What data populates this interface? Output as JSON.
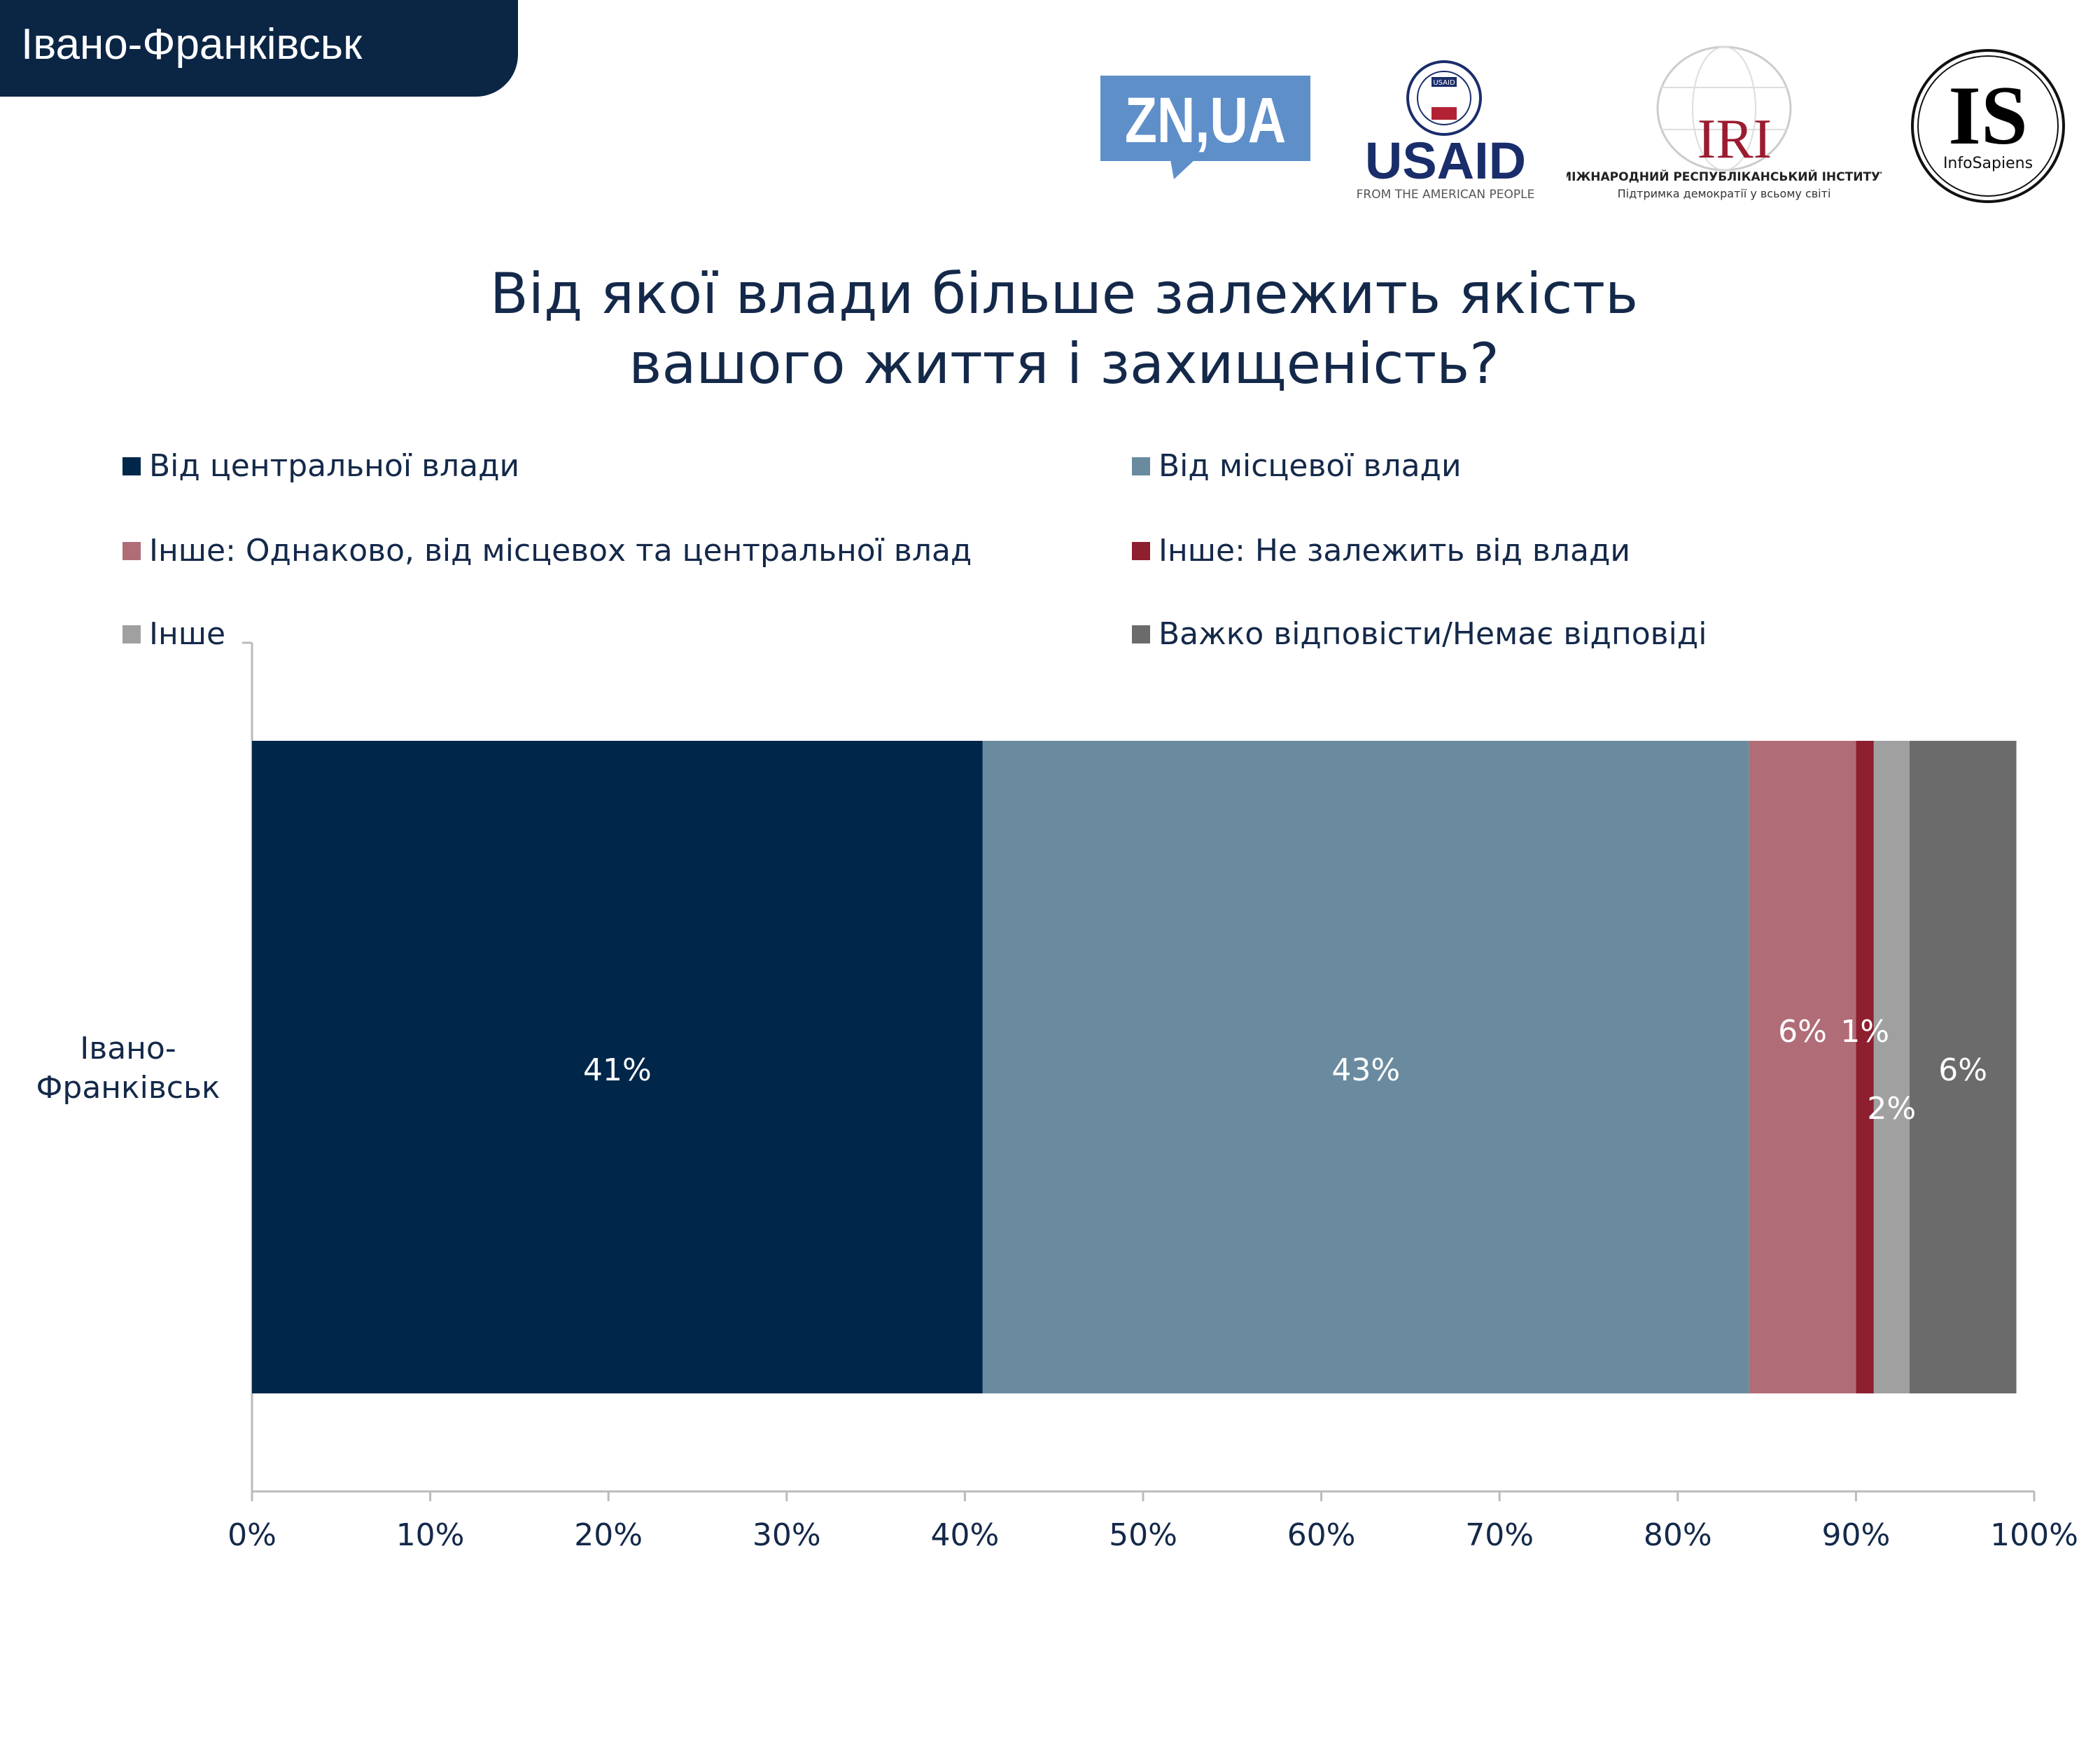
{
  "header": {
    "region_title": "Івано-Франківськ"
  },
  "logos": {
    "znua": "ZN,UA",
    "usaid": {
      "name": "USAID",
      "tagline": "FROM THE AMERICAN PEOPLE",
      "seal_text": "USAID"
    },
    "iri": {
      "name": "IRI",
      "line1": "МІЖНАРОДНИЙ РЕСПУБЛІКАНСЬКИЙ ІНСТИТУТ",
      "line2": "Підтримка демократії у всьому світі"
    },
    "infosapiens": {
      "name": "IS",
      "sub": "InfoSapiens"
    }
  },
  "chart_data": {
    "type": "bar",
    "orientation": "horizontal",
    "stacked": true,
    "title_lines": [
      "Від якої влади більше залежить якість",
      "вашого життя і захищеність?"
    ],
    "categories": [
      "Івано-\nФранківськ"
    ],
    "category_lines": [
      "Івано-",
      "Франківськ"
    ],
    "series": [
      {
        "name": "Від центральної влади",
        "values": [
          41
        ],
        "label": "41%",
        "color": "#00264a"
      },
      {
        "name": "Від місцевої влади",
        "values": [
          43
        ],
        "label": "43%",
        "color": "#6a8b9f"
      },
      {
        "name": "Інше: Однаково, від місцевох та центральної влад",
        "values": [
          6
        ],
        "label": "6%",
        "color": "#b06d77"
      },
      {
        "name": "Інше: Не залежить від влади",
        "values": [
          1
        ],
        "label": "1%",
        "color": "#8e1f2f"
      },
      {
        "name": "Інше",
        "values": [
          2
        ],
        "label": "2%",
        "color": "#a0a0a0"
      },
      {
        "name": "Важко відповісти/Немає відповіді",
        "values": [
          6
        ],
        "label": "6%",
        "color": "#6b6b6b"
      }
    ],
    "xlim": [
      0,
      100
    ],
    "xticks": [
      "0%",
      "10%",
      "20%",
      "30%",
      "40%",
      "50%",
      "60%",
      "70%",
      "80%",
      "90%",
      "100%"
    ],
    "legend_position": "top",
    "grid": false
  }
}
